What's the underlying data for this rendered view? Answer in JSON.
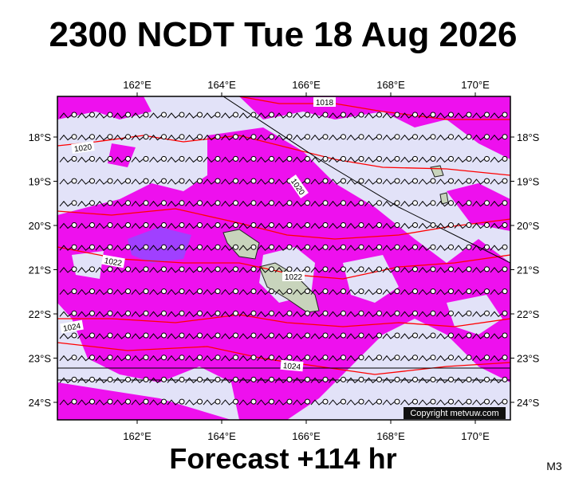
{
  "header": {
    "title": "2300 NCDT Tue 18 Aug 2026"
  },
  "map": {
    "lon_labels": [
      "162°E",
      "164°E",
      "166°E",
      "168°E",
      "170°E"
    ],
    "lat_labels": [
      "18°S",
      "19°S",
      "20°S",
      "21°S",
      "22°S",
      "23°S",
      "24°S"
    ],
    "isobar_labels": [
      "1018",
      "1020",
      "1020",
      "1022",
      "1022",
      "1024",
      "1024"
    ],
    "copyright": "Copyright metvuw.com"
  },
  "footer": {
    "forecast": "Forecast +114 hr",
    "model": "M3"
  }
}
